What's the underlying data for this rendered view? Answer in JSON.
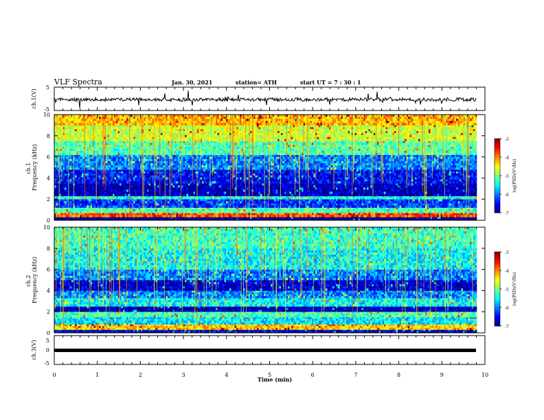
{
  "header": {
    "title": "VLF Spectra",
    "date": "Jan. 30, 2021",
    "station": "station= ATH",
    "start": "start  UT =   7 : 30 : 1"
  },
  "chart_data": [
    {
      "type": "line",
      "ylabel": "ch.1(V)",
      "ylim": [
        -5,
        5
      ],
      "yticks": [
        "5",
        "-5"
      ],
      "x": [
        0,
        9.8
      ],
      "y_baseline": 0,
      "note": "noisy waveform around 0 V"
    },
    {
      "type": "heatmap",
      "ylabel": "ch.1\nFrequency (kHz)",
      "ylim": [
        0,
        10
      ],
      "yticks": [
        "0",
        "2",
        "4",
        "6",
        "8",
        "10"
      ],
      "xlim": [
        0,
        9.8
      ],
      "colorbar": {
        "label": "log(PSD)(V²/Hz)",
        "range": [
          -7,
          -3
        ],
        "ticks": [
          "-3",
          "-4",
          "-5",
          "-6",
          "-7"
        ]
      },
      "bands": [
        {
          "f": [
            0.0,
            0.3
          ],
          "v": -7.0
        },
        {
          "f": [
            0.3,
            0.7
          ],
          "v": -3.8
        },
        {
          "f": [
            0.7,
            1.2
          ],
          "v": -5.2
        },
        {
          "f": [
            1.2,
            2.0
          ],
          "v": -6.3
        },
        {
          "f": [
            2.0,
            2.3
          ],
          "v": -5.4
        },
        {
          "f": [
            2.3,
            3.5
          ],
          "v": -6.8
        },
        {
          "f": [
            3.5,
            4.8
          ],
          "v": -6.5
        },
        {
          "f": [
            4.8,
            6.2
          ],
          "v": -6.0
        },
        {
          "f": [
            6.2,
            7.5
          ],
          "v": -5.2
        },
        {
          "f": [
            7.5,
            9.0
          ],
          "v": -4.7
        },
        {
          "f": [
            9.0,
            10.0
          ],
          "v": -4.2
        }
      ]
    },
    {
      "type": "heatmap",
      "ylabel": "ch.2\nFrequency (kHz)",
      "ylim": [
        0,
        10
      ],
      "yticks": [
        "0",
        "2",
        "4",
        "6",
        "8",
        "10"
      ],
      "xlim": [
        0,
        9.8
      ],
      "colorbar": {
        "label": "log(PSD)(V²/Hz)",
        "range": [
          -7,
          -3
        ],
        "ticks": [
          "-3",
          "-4",
          "-5",
          "-6",
          "-7"
        ]
      },
      "bands": [
        {
          "f": [
            0.0,
            0.3
          ],
          "v": -6.6
        },
        {
          "f": [
            0.3,
            0.8
          ],
          "v": -4.3
        },
        {
          "f": [
            0.8,
            1.5
          ],
          "v": -5.6
        },
        {
          "f": [
            1.5,
            2.0
          ],
          "v": -5.2
        },
        {
          "f": [
            2.0,
            2.5
          ],
          "v": -6.8
        },
        {
          "f": [
            2.5,
            3.3
          ],
          "v": -5.5
        },
        {
          "f": [
            3.3,
            4.0
          ],
          "v": -6.0
        },
        {
          "f": [
            4.0,
            5.0
          ],
          "v": -6.7
        },
        {
          "f": [
            5.0,
            6.0
          ],
          "v": -6.0
        },
        {
          "f": [
            6.0,
            8.0
          ],
          "v": -5.5
        },
        {
          "f": [
            8.0,
            10.0
          ],
          "v": -5.3
        }
      ]
    },
    {
      "type": "line",
      "ylabel": "ch.3(V)",
      "ylim": [
        -5,
        5
      ],
      "yticks": [
        "5",
        "0",
        "-5"
      ],
      "x": [
        0,
        9.8
      ],
      "y_baseline": 0,
      "note": "thick flat trace at 0 V"
    }
  ],
  "xaxis": {
    "label": "Time  (min)",
    "ticks": [
      "0",
      "1",
      "2",
      "3",
      "4",
      "5",
      "6",
      "7",
      "8",
      "9",
      "10"
    ]
  }
}
